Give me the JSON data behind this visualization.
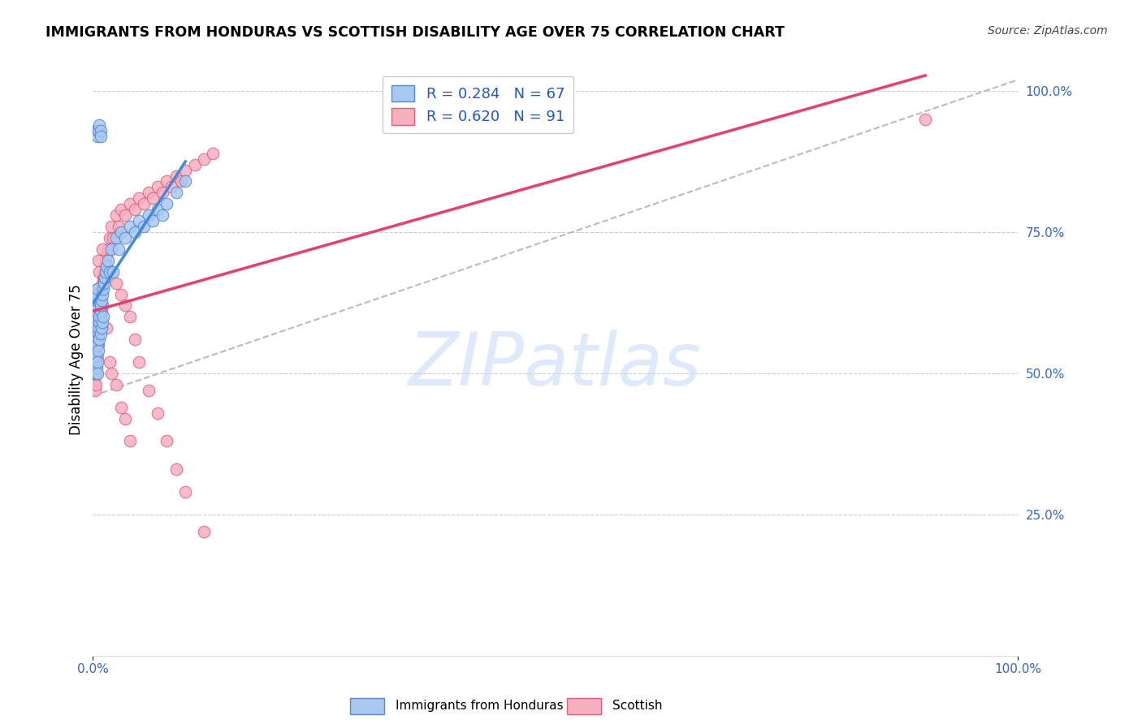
{
  "title": "IMMIGRANTS FROM HONDURAS VS SCOTTISH DISABILITY AGE OVER 75 CORRELATION CHART",
  "source": "Source: ZipAtlas.com",
  "ylabel": "Disability Age Over 75",
  "right_ytick_vals": [
    0.25,
    0.5,
    0.75,
    1.0
  ],
  "right_ytick_labels": [
    "25.0%",
    "50.0%",
    "75.0%",
    "100.0%"
  ],
  "watermark_text": "ZIPatlas",
  "legend_label1": "Immigrants from Honduras",
  "legend_label2": "Scottish",
  "r1": 0.284,
  "n1": 67,
  "r2": 0.62,
  "n2": 91,
  "color_blue_fill": "#A8C8F0",
  "color_blue_edge": "#5588CC",
  "color_pink_fill": "#F5B0C0",
  "color_pink_edge": "#E06080",
  "color_blue_line": "#4488DD",
  "color_pink_line": "#E8406A",
  "color_dash_line": "#BBBBBB",
  "xlim": [
    0,
    0.155
  ],
  "ylim": [
    0,
    1.05
  ],
  "xtick_vals": [
    0,
    0.025,
    0.05,
    0.075,
    0.1,
    0.125,
    0.15
  ],
  "blue_x": [
    0.001,
    0.001,
    0.001,
    0.002,
    0.002,
    0.002,
    0.002,
    0.002,
    0.003,
    0.003,
    0.003,
    0.003,
    0.003,
    0.004,
    0.004,
    0.004,
    0.004,
    0.005,
    0.005,
    0.005,
    0.005,
    0.005,
    0.006,
    0.006,
    0.006,
    0.007,
    0.007,
    0.007,
    0.008,
    0.008,
    0.008,
    0.009,
    0.009,
    0.01,
    0.01,
    0.011,
    0.011,
    0.012,
    0.013,
    0.014,
    0.015,
    0.016,
    0.018,
    0.02,
    0.022,
    0.025,
    0.028,
    0.03,
    0.035,
    0.04,
    0.045,
    0.05,
    0.055,
    0.06,
    0.065,
    0.07,
    0.075,
    0.08,
    0.09,
    0.1,
    0.003,
    0.004,
    0.005,
    0.006,
    0.007,
    0.008,
    0.008
  ],
  "blue_y": [
    0.5,
    0.52,
    0.54,
    0.53,
    0.55,
    0.56,
    0.57,
    0.5,
    0.58,
    0.59,
    0.6,
    0.61,
    0.5,
    0.62,
    0.63,
    0.64,
    0.51,
    0.65,
    0.56,
    0.55,
    0.52,
    0.5,
    0.57,
    0.58,
    0.54,
    0.59,
    0.6,
    0.56,
    0.61,
    0.62,
    0.57,
    0.63,
    0.58,
    0.64,
    0.59,
    0.65,
    0.6,
    0.66,
    0.67,
    0.68,
    0.69,
    0.7,
    0.68,
    0.72,
    0.68,
    0.74,
    0.72,
    0.75,
    0.74,
    0.76,
    0.75,
    0.77,
    0.76,
    0.78,
    0.77,
    0.79,
    0.78,
    0.8,
    0.82,
    0.84,
    0.93,
    0.93,
    0.92,
    0.93,
    0.94,
    0.93,
    0.92
  ],
  "pink_x": [
    0.001,
    0.001,
    0.001,
    0.001,
    0.001,
    0.002,
    0.002,
    0.002,
    0.002,
    0.002,
    0.003,
    0.003,
    0.003,
    0.003,
    0.004,
    0.004,
    0.004,
    0.005,
    0.005,
    0.005,
    0.005,
    0.006,
    0.006,
    0.006,
    0.007,
    0.007,
    0.007,
    0.008,
    0.008,
    0.009,
    0.009,
    0.01,
    0.01,
    0.011,
    0.012,
    0.013,
    0.014,
    0.015,
    0.016,
    0.018,
    0.02,
    0.022,
    0.025,
    0.028,
    0.03,
    0.035,
    0.04,
    0.045,
    0.05,
    0.055,
    0.06,
    0.065,
    0.07,
    0.075,
    0.08,
    0.085,
    0.09,
    0.095,
    0.1,
    0.11,
    0.12,
    0.13,
    0.003,
    0.004,
    0.005,
    0.006,
    0.007,
    0.008,
    0.009,
    0.01,
    0.012,
    0.015,
    0.018,
    0.02,
    0.025,
    0.03,
    0.035,
    0.04,
    0.025,
    0.03,
    0.035,
    0.04,
    0.045,
    0.05,
    0.06,
    0.07,
    0.08,
    0.09,
    0.1,
    0.12,
    0.9
  ],
  "pink_y": [
    0.49,
    0.5,
    0.51,
    0.52,
    0.48,
    0.53,
    0.54,
    0.55,
    0.5,
    0.47,
    0.56,
    0.57,
    0.52,
    0.48,
    0.58,
    0.59,
    0.53,
    0.6,
    0.57,
    0.56,
    0.53,
    0.61,
    0.58,
    0.55,
    0.62,
    0.63,
    0.59,
    0.64,
    0.6,
    0.65,
    0.61,
    0.66,
    0.62,
    0.67,
    0.68,
    0.69,
    0.7,
    0.71,
    0.72,
    0.74,
    0.76,
    0.74,
    0.78,
    0.76,
    0.79,
    0.78,
    0.8,
    0.79,
    0.81,
    0.8,
    0.82,
    0.81,
    0.83,
    0.82,
    0.84,
    0.83,
    0.85,
    0.84,
    0.86,
    0.87,
    0.88,
    0.89,
    0.55,
    0.6,
    0.65,
    0.7,
    0.68,
    0.64,
    0.58,
    0.72,
    0.67,
    0.58,
    0.52,
    0.5,
    0.48,
    0.44,
    0.42,
    0.38,
    0.66,
    0.64,
    0.62,
    0.6,
    0.56,
    0.52,
    0.47,
    0.43,
    0.38,
    0.33,
    0.29,
    0.22,
    0.95
  ]
}
